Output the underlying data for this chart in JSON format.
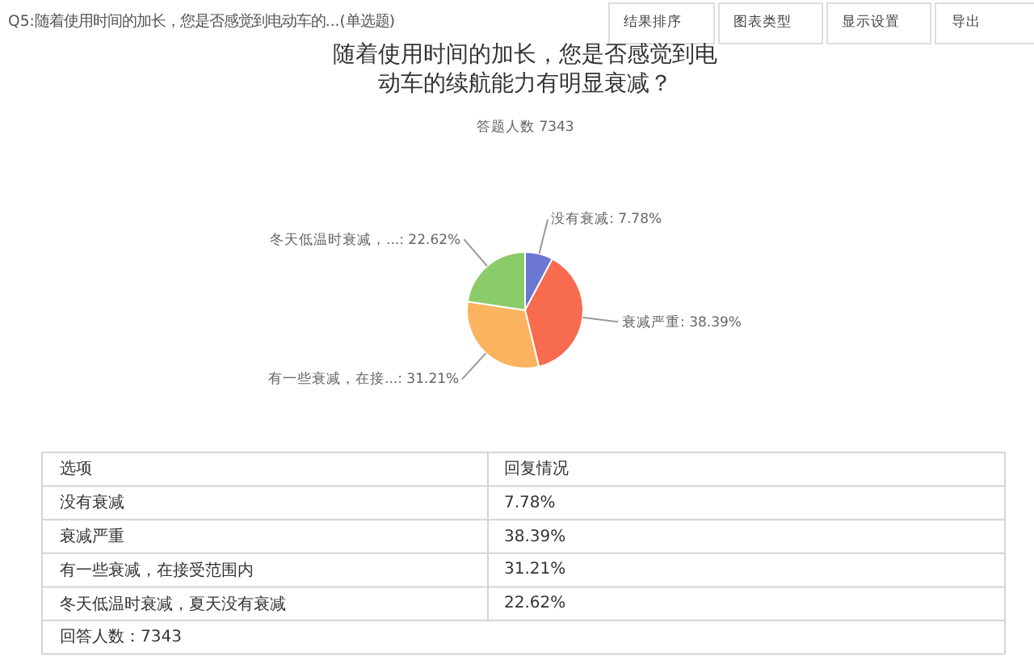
{
  "chart_data": [
    {
      "type": "pie",
      "title": "随着使用时间的加长，您是否感觉到电动车的续航能力有明显衰减？",
      "subtitle": "答题人数 7343",
      "categories": [
        null,
        null,
        null,
        null
      ],
      "values": [
        7.78,
        38.39,
        31.21,
        22.62
      ],
      "colors": [
        "#6a76cf",
        "#f76b4f",
        "#fbb35f",
        "#8bcb6a"
      ],
      "value_labels": [
        "没有衰减: 7.78%",
        "衰减严重: 38.39%",
        "有一些衰减，在接...: 31.21%",
        "冬天低温时衰减，...: 22.62%"
      ],
      "annotations": [
        "Q5:随着使用时间的加长，您是否感觉到电动车的...(单选题)",
        "结果排序",
        "图表类型",
        "显示设置",
        "导出"
      ]
    },
    {
      "type": "other",
      "annotations": [
        "选项",
        "回复情况",
        "没有衰减",
        "7.78%",
        "衰减严重",
        "38.39%",
        "有一些衰减，在接受范围内",
        "31.21%",
        "冬天低温时衰减，夏天没有衰减",
        "22.62%",
        "回答人数：7343"
      ]
    }
  ]
}
